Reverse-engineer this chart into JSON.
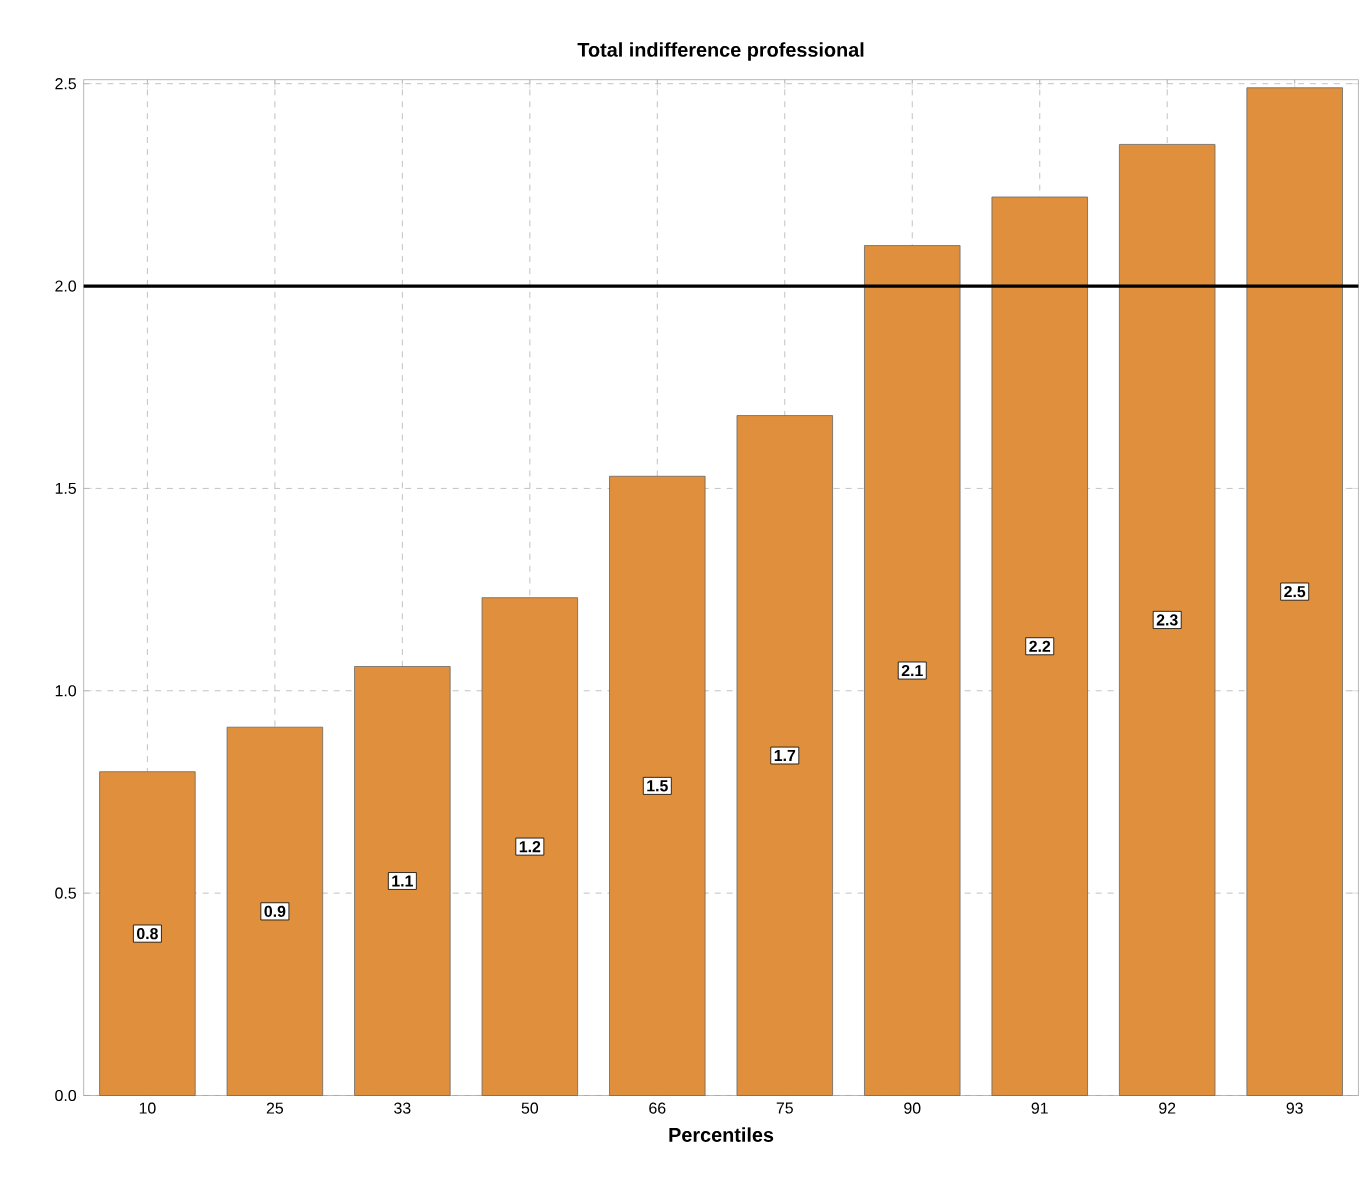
{
  "chart_data": {
    "type": "bar",
    "title": "Total indifference professional",
    "xlabel": "Percentiles",
    "categories": [
      "10",
      "25",
      "33",
      "50",
      "66",
      "75",
      "90",
      "91",
      "92",
      "93"
    ],
    "values": [
      0.8,
      0.91,
      1.06,
      1.23,
      1.53,
      1.68,
      2.1,
      2.22,
      2.35,
      2.49
    ],
    "value_labels": [
      "0.8",
      "0.9",
      "1.1",
      "1.2",
      "1.5",
      "1.7",
      "2.1",
      "2.2",
      "2.3",
      "2.5"
    ],
    "color": "#e0903c",
    "ylim": [
      0,
      2.51
    ],
    "yticks": [
      {
        "value": 0,
        "label": "0.0"
      },
      0.5,
      {
        "value": 1,
        "label": "1.0"
      },
      1.5,
      {
        "value": 2,
        "label": "2.0"
      },
      2.5
    ],
    "ref_lines": [
      {
        "axis": "y",
        "value": 2.0,
        "color": "#000000"
      }
    ],
    "grid": true
  }
}
